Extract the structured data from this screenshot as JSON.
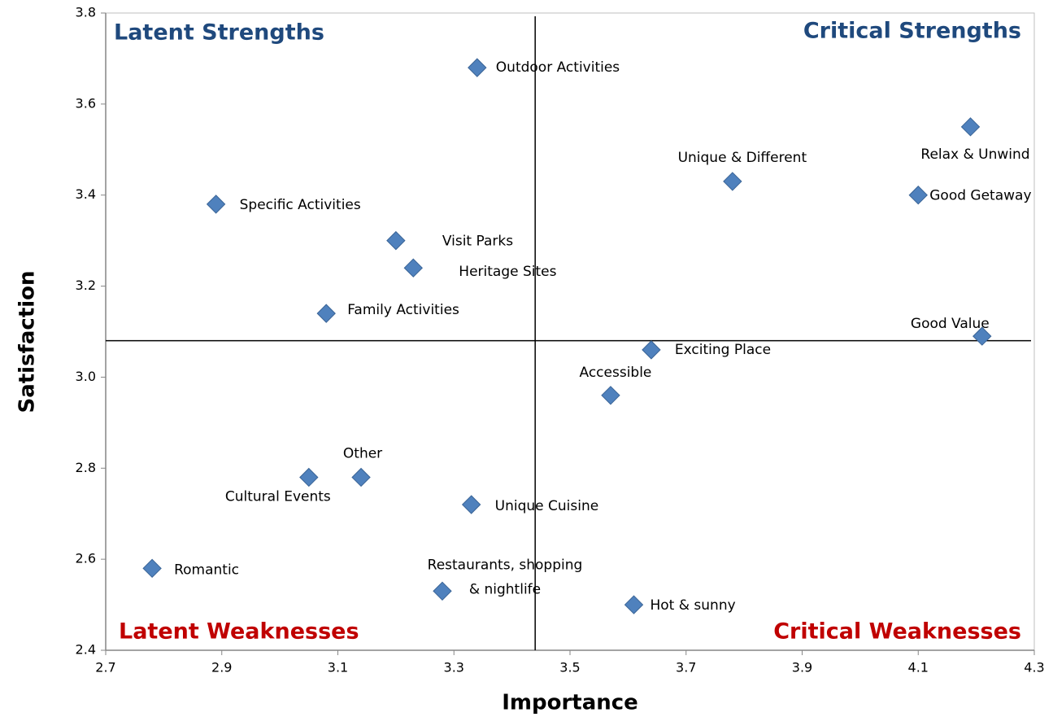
{
  "chart_data": {
    "type": "scatter",
    "xlabel": "Importance",
    "ylabel": "Satisfaction",
    "quadrant_labels": {
      "top_left": "Latent Strengths",
      "top_right": "Critical Strengths",
      "bottom_left": "Latent Weaknesses",
      "bottom_right": "Critical Weaknesses"
    },
    "point_labels": [
      "Outdoor Activities",
      "Relax & Unwind",
      "Unique & Different",
      "Good Getaway",
      "Specific Activities",
      "Visit Parks",
      "Heritage Sites",
      "Family Activities",
      "Good Value",
      "Exciting Place",
      "Accessible",
      "Cultural Events",
      "Other",
      "Unique Cuisine",
      "Romantic",
      "Restaurants, shopping\n& nightlife",
      "Hot & sunny"
    ],
    "x": [
      3.34,
      4.19,
      3.78,
      4.1,
      2.89,
      3.2,
      3.23,
      3.08,
      4.21,
      3.64,
      3.57,
      3.05,
      3.14,
      3.33,
      2.78,
      3.28,
      3.61
    ],
    "values": [
      3.68,
      3.55,
      3.43,
      3.4,
      3.38,
      3.3,
      3.24,
      3.14,
      3.09,
      3.06,
      2.96,
      2.78,
      2.78,
      2.72,
      2.58,
      2.53,
      2.5
    ],
    "color": "#4f81bd",
    "x_divider": 3.44,
    "y_divider": 3.08,
    "xlim": [
      2.7,
      4.3
    ],
    "ylim": [
      2.4,
      3.8
    ],
    "xticks": [
      2.7,
      2.9,
      3.1,
      3.3,
      3.5,
      3.7,
      3.9,
      4.1,
      4.3
    ],
    "yticks": [
      2.4,
      2.6,
      2.8,
      {
        "value": 3,
        "label": "3.0"
      },
      3.2,
      3.4,
      3.6,
      3.8
    ]
  }
}
